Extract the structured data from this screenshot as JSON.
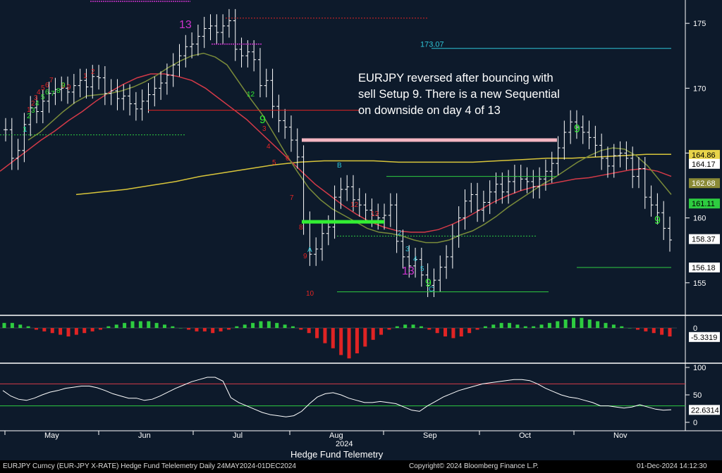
{
  "chart_data": [
    {
      "type": "line",
      "panel": "price",
      "title": "",
      "yaxis": {
        "ticks": [
          155,
          160,
          165,
          170,
          175
        ],
        "ylim": [
          152.6,
          176.8
        ],
        "position": "right"
      },
      "xaxis": {
        "months": [
          "May",
          "Jun",
          "Jul",
          "Aug",
          "Sep",
          "Oct",
          "Nov"
        ],
        "year": "2024",
        "range": [
          "2024-05-24",
          "2024-12-01"
        ]
      },
      "annotation": "EURJPY reversed after bouncing with sell Setup 9.  There is a new Sequential on downside on day 4 of 13",
      "level_labels": [
        {
          "text": "173.07",
          "value": 173.07,
          "color": "#2ec4d6"
        }
      ],
      "price_tags": [
        {
          "text": "164.86",
          "value": 164.86,
          "color": "#e8d44a",
          "text_color": "#000000"
        },
        {
          "text": "164.17",
          "value": 164.17,
          "color": "#ffffff",
          "text_color": "#000000"
        },
        {
          "text": "162.68",
          "value": 162.68,
          "color": "#8a8a36",
          "text_color": "#ffffff"
        },
        {
          "text": "161.11",
          "value": 161.11,
          "color": "#2ecc40",
          "text_color": "#000000"
        },
        {
          "text": "158.37",
          "value": 158.37,
          "color": "#ffffff",
          "text_color": "#000000"
        },
        {
          "text": "156.18",
          "value": 156.18,
          "color": "#ffffff",
          "text_color": "#000000"
        }
      ],
      "close_series": [
        166.8,
        164.6,
        165.2,
        167.2,
        168.5,
        168.2,
        169.0,
        169.6,
        169.9,
        170.0,
        169.7,
        170.2,
        170.6,
        170.1,
        170.9,
        170.8,
        169.6,
        169.8,
        169.2,
        169.4,
        168.8,
        168.4,
        169.0,
        169.5,
        170.0,
        170.4,
        171.0,
        171.8,
        172.5,
        173.2,
        173.4,
        174.0,
        174.6,
        174.8,
        174.3,
        174.8,
        175.2,
        173.0,
        172.5,
        172.8,
        172.2,
        170.2,
        170.6,
        168.6,
        167.5,
        167.0,
        166.0,
        164.7,
        159.6,
        157.2,
        157.6,
        158.8,
        159.3,
        161.6,
        162.2,
        162.4,
        161.4,
        161.0,
        160.6,
        160.2,
        160.0,
        160.2,
        161.0,
        158.2,
        157.0,
        156.3,
        156.8,
        155.6,
        154.8,
        155.2,
        156.2,
        157.0,
        158.6,
        160.0,
        161.3,
        161.8,
        160.6,
        161.2,
        162.0,
        162.6,
        162.0,
        162.8,
        163.2,
        163.0,
        162.8,
        162.4,
        163.0,
        163.6,
        164.2,
        165.4,
        166.6,
        167.4,
        167.0,
        166.6,
        166.2,
        165.6,
        164.6,
        164.0,
        164.8,
        165.0,
        164.6,
        163.2,
        163.8,
        161.6,
        161.0,
        160.4,
        159.2,
        158.3
      ],
      "series": [
        {
          "values_ref": "close_series",
          "color": "#ffffff",
          "style": "ohlc-bars"
        },
        {
          "role": "short-ma",
          "color": "#7a8b3a",
          "values": [
            166.0,
            166.6,
            167.4,
            168.2,
            168.9,
            169.4,
            169.5,
            169.6,
            169.8,
            170.1,
            170.5,
            171.0,
            171.6,
            172.1,
            172.5,
            172.7,
            172.4,
            171.8,
            170.5,
            169.2,
            168.0,
            166.5,
            165.0,
            163.6,
            162.3,
            161.4,
            160.7,
            160.2,
            159.7,
            159.2,
            158.9,
            158.8,
            158.6,
            158.3,
            158.1,
            158.1,
            158.3,
            158.7,
            159.0,
            159.5,
            160.1,
            160.8,
            161.4,
            162.0,
            162.6,
            163.1,
            163.7,
            164.3,
            164.8,
            165.2,
            165.4,
            165.3,
            164.8,
            164.0,
            162.9,
            161.8
          ]
        },
        {
          "role": "medium-ma",
          "color": "#d43a48",
          "values": [
            163.6,
            164.4,
            165.2,
            166.0,
            166.7,
            167.5,
            168.2,
            169.0,
            169.7,
            170.3,
            170.8,
            171.1,
            171.1,
            170.9,
            170.6,
            170.0,
            169.2,
            168.4,
            167.6,
            166.6,
            165.6,
            164.6,
            163.6,
            162.6,
            161.8,
            161.0,
            160.3,
            159.7,
            159.3,
            159.0,
            158.9,
            158.9,
            159.1,
            159.5,
            160.0,
            160.6,
            161.2,
            161.7,
            162.1,
            162.4,
            162.6,
            162.8,
            163.0,
            163.1,
            163.3,
            163.5,
            163.7,
            163.8,
            163.6,
            163.2
          ]
        },
        {
          "role": "long-ma",
          "color": "#d8c53a",
          "values": [
            161.8,
            162.0,
            162.2,
            162.5,
            162.8,
            163.2,
            163.5,
            163.8,
            164.1,
            164.3,
            164.4,
            164.4,
            164.4,
            164.3,
            164.3,
            164.3,
            164.3,
            164.4,
            164.5,
            164.6,
            164.6,
            164.7,
            164.8,
            164.9,
            164.9
          ]
        }
      ],
      "setup_counts": {
        "red": [
          "1",
          "2",
          "3",
          "4",
          "5",
          "6",
          "7",
          "8",
          "9",
          "1",
          "2",
          "3",
          "4",
          "5",
          "6",
          "7",
          "8",
          "9",
          "10",
          "12",
          "13"
        ],
        "green": [
          "1",
          "2",
          "3",
          "4",
          "5",
          "6",
          "7",
          "8",
          "9",
          "12"
        ],
        "cyan": [
          "A",
          "B",
          "C",
          "1",
          "2",
          "3",
          "4",
          "5"
        ]
      }
    },
    {
      "type": "bar",
      "panel": "oscillator",
      "yaxis": {
        "ticks": [
          0,
          -5
        ],
        "position": "right"
      },
      "last_value_tag": {
        "text": "-5.3319",
        "value": -5.3319,
        "color": "#ffffff"
      },
      "values": [
        3,
        3,
        2,
        1,
        -1,
        -2,
        -3,
        -4,
        -5,
        -4,
        -3,
        -2,
        -1,
        1,
        2,
        3,
        4,
        4,
        4,
        3,
        2,
        1,
        0,
        -1,
        -2,
        -2,
        -3,
        -2,
        -1,
        1,
        2,
        3,
        4,
        4,
        3,
        2,
        1,
        -1,
        -3,
        -6,
        -9,
        -12,
        -16,
        -18,
        -15,
        -11,
        -7,
        -4,
        -1,
        1,
        2,
        2,
        1,
        -1,
        -3,
        -5,
        -6,
        -5,
        -3,
        -1,
        1,
        2,
        3,
        3,
        2,
        1,
        1,
        2,
        3,
        4,
        5,
        6,
        6,
        5,
        4,
        3,
        2,
        1,
        0,
        -1,
        -2,
        -3,
        -4,
        -5
      ]
    },
    {
      "type": "line",
      "panel": "momentum",
      "yaxis": {
        "ticks": [
          100,
          50,
          0
        ],
        "ylim": [
          0,
          100
        ],
        "position": "right"
      },
      "last_value_tag": {
        "text": "22.6314",
        "value": 22.6314,
        "color": "#ffffff"
      },
      "upper_band": 70,
      "lower_band": 30,
      "values": [
        58,
        48,
        42,
        40,
        44,
        50,
        55,
        58,
        62,
        64,
        66,
        66,
        63,
        58,
        52,
        48,
        44,
        44,
        40,
        42,
        48,
        55,
        62,
        68,
        74,
        78,
        82,
        82,
        75,
        45,
        36,
        30,
        24,
        18,
        14,
        12,
        10,
        12,
        20,
        34,
        46,
        52,
        54,
        50,
        44,
        40,
        36,
        36,
        38,
        36,
        34,
        28,
        22,
        20,
        30,
        38,
        46,
        52,
        58,
        62,
        66,
        70,
        72,
        74,
        76,
        78,
        78,
        76,
        70,
        62,
        56,
        50,
        46,
        44,
        40,
        36,
        30,
        30,
        28,
        26,
        28,
        32,
        28,
        24,
        22,
        23
      ]
    }
  ],
  "footer": {
    "instrument": "EURJPY Curncy (EUR-JPY X-RATE) Hedge Fund Telelemetry  Daily 24MAY2024-01DEC2024",
    "copyright": "Copyright© 2024 Bloomberg Finance L.P.",
    "timestamp": "01-Dec-2024 14:12:30"
  },
  "x_title": "Hedge Fund Telemetry",
  "colors": {
    "background": "#0d1a2b",
    "axis_panel": "#ffffff",
    "up_bar": "#2ecc40",
    "down_bar": "#e02424"
  }
}
